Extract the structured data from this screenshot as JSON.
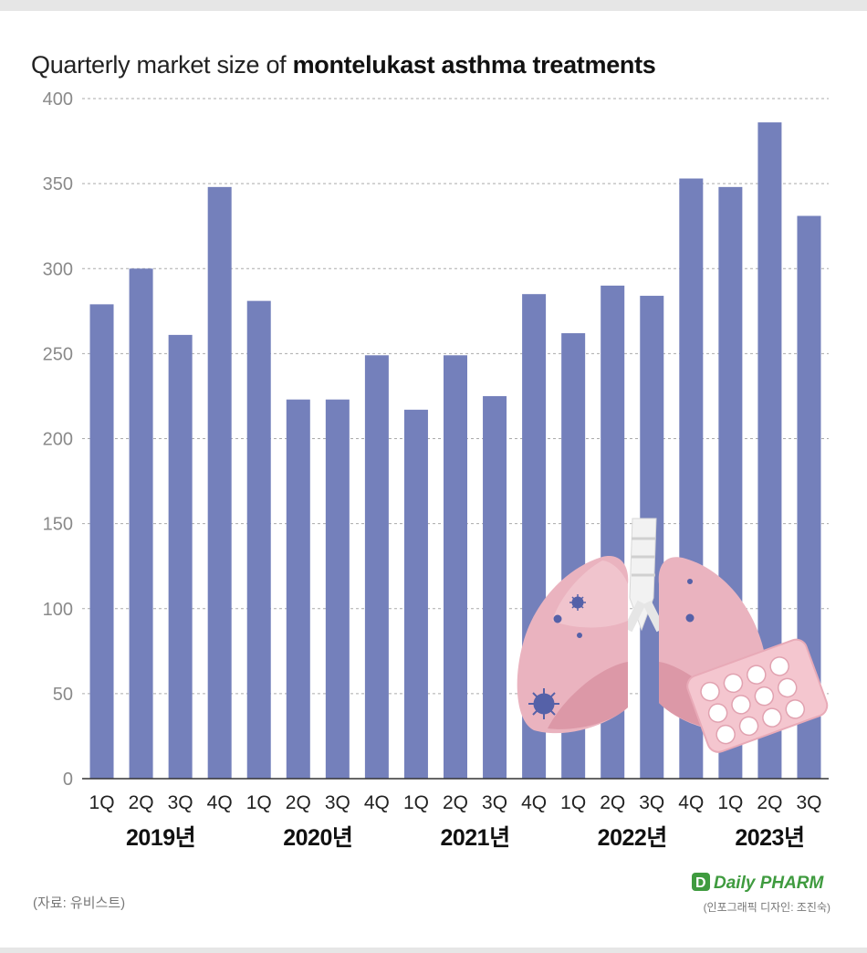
{
  "title_regular": "Quarterly market size of ",
  "title_bold": "montelukast asthma treatments",
  "source": "(자료: 유비스트)",
  "logo": "Daily PHARM",
  "credit": "(인포그래픽 디자인: 조진숙)",
  "colors": {
    "bar": "#7480bb",
    "grid": "#aaaaaa",
    "axis": "#333333"
  },
  "illustration": [
    "lungs-icon",
    "virus-icon",
    "pill-blister-icon"
  ],
  "chart_data": {
    "type": "bar",
    "title": "Quarterly market size of montelukast asthma treatments",
    "categories": [
      "1Q",
      "2Q",
      "3Q",
      "4Q",
      "1Q",
      "2Q",
      "3Q",
      "4Q",
      "1Q",
      "2Q",
      "3Q",
      "4Q",
      "1Q",
      "2Q",
      "3Q",
      "4Q",
      "1Q",
      "2Q",
      "3Q"
    ],
    "years": [
      "2019년",
      "2020년",
      "2021년",
      "2022년",
      "2023년"
    ],
    "values": [
      279,
      300,
      261,
      348,
      281,
      223,
      223,
      249,
      217,
      249,
      225,
      285,
      262,
      290,
      284,
      353,
      348,
      386,
      331
    ],
    "ylim": [
      0,
      400
    ],
    "yticks": [
      0,
      50,
      100,
      150,
      200,
      250,
      300,
      350,
      400
    ],
    "grid": true
  }
}
